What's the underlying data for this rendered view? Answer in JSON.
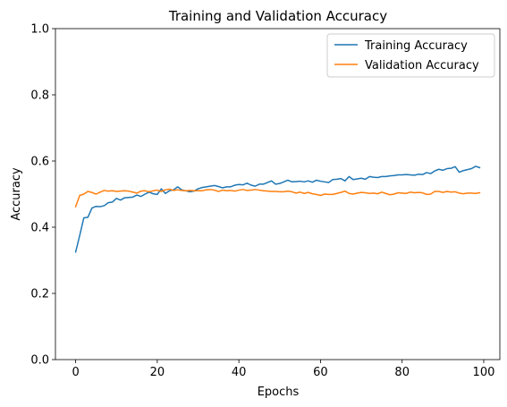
{
  "chart_data": {
    "type": "line",
    "title": "Training and Validation Accuracy",
    "xlabel": "Epochs",
    "ylabel": "Accuracy",
    "xlim": [
      -4.95,
      103.95
    ],
    "ylim": [
      0.0,
      1.0
    ],
    "xticks": [
      0,
      20,
      40,
      60,
      80,
      100
    ],
    "yticks": [
      0.0,
      0.2,
      0.4,
      0.6,
      0.8,
      1.0
    ],
    "xtick_labels": [
      "0",
      "20",
      "40",
      "60",
      "80",
      "100"
    ],
    "ytick_labels": [
      "0.0",
      "0.2",
      "0.4",
      "0.6",
      "0.8",
      "1.0"
    ],
    "grid": false,
    "legend_position": "top-right",
    "series": [
      {
        "name": "Training Accuracy",
        "color": "#1f77b4",
        "x": [
          0,
          1,
          2,
          3,
          4,
          5,
          6,
          7,
          8,
          9,
          10,
          11,
          12,
          13,
          14,
          15,
          16,
          17,
          18,
          19,
          20,
          21,
          22,
          23,
          24,
          25,
          26,
          27,
          28,
          29,
          30,
          31,
          32,
          33,
          34,
          35,
          36,
          37,
          38,
          39,
          40,
          41,
          42,
          43,
          44,
          45,
          46,
          47,
          48,
          49,
          50,
          51,
          52,
          53,
          54,
          55,
          56,
          57,
          58,
          59,
          60,
          61,
          62,
          63,
          64,
          65,
          66,
          67,
          68,
          69,
          70,
          71,
          72,
          73,
          74,
          75,
          76,
          77,
          78,
          79,
          80,
          81,
          82,
          83,
          84,
          85,
          86,
          87,
          88,
          89,
          90,
          91,
          92,
          93,
          94,
          95,
          96,
          97,
          98,
          99
        ],
        "y": [
          0.325,
          0.375,
          0.428,
          0.43,
          0.458,
          0.463,
          0.462,
          0.465,
          0.474,
          0.476,
          0.487,
          0.482,
          0.489,
          0.49,
          0.491,
          0.497,
          0.493,
          0.5,
          0.506,
          0.501,
          0.499,
          0.516,
          0.502,
          0.51,
          0.513,
          0.522,
          0.513,
          0.51,
          0.507,
          0.509,
          0.516,
          0.52,
          0.522,
          0.524,
          0.526,
          0.523,
          0.519,
          0.522,
          0.522,
          0.527,
          0.529,
          0.528,
          0.533,
          0.527,
          0.524,
          0.53,
          0.53,
          0.535,
          0.54,
          0.53,
          0.532,
          0.537,
          0.542,
          0.537,
          0.538,
          0.539,
          0.537,
          0.54,
          0.536,
          0.542,
          0.539,
          0.537,
          0.535,
          0.544,
          0.545,
          0.547,
          0.54,
          0.553,
          0.544,
          0.546,
          0.548,
          0.545,
          0.553,
          0.551,
          0.55,
          0.553,
          0.553,
          0.555,
          0.556,
          0.558,
          0.558,
          0.559,
          0.558,
          0.557,
          0.56,
          0.559,
          0.565,
          0.562,
          0.57,
          0.575,
          0.572,
          0.577,
          0.578,
          0.583,
          0.566,
          0.571,
          0.574,
          0.577,
          0.584,
          0.58
        ]
      },
      {
        "name": "Validation Accuracy",
        "color": "#ff7f0e",
        "x": [
          0,
          1,
          2,
          3,
          4,
          5,
          6,
          7,
          8,
          9,
          10,
          11,
          12,
          13,
          14,
          15,
          16,
          17,
          18,
          19,
          20,
          21,
          22,
          23,
          24,
          25,
          26,
          27,
          28,
          29,
          30,
          31,
          32,
          33,
          34,
          35,
          36,
          37,
          38,
          39,
          40,
          41,
          42,
          43,
          44,
          45,
          46,
          47,
          48,
          49,
          50,
          51,
          52,
          53,
          54,
          55,
          56,
          57,
          58,
          59,
          60,
          61,
          62,
          63,
          64,
          65,
          66,
          67,
          68,
          69,
          70,
          71,
          72,
          73,
          74,
          75,
          76,
          77,
          78,
          79,
          80,
          81,
          82,
          83,
          84,
          85,
          86,
          87,
          88,
          89,
          90,
          91,
          92,
          93,
          94,
          95,
          96,
          97,
          98,
          99
        ],
        "y": [
          0.462,
          0.496,
          0.5,
          0.508,
          0.505,
          0.5,
          0.506,
          0.511,
          0.509,
          0.51,
          0.508,
          0.509,
          0.51,
          0.509,
          0.506,
          0.503,
          0.509,
          0.51,
          0.507,
          0.51,
          0.512,
          0.508,
          0.513,
          0.515,
          0.511,
          0.513,
          0.511,
          0.51,
          0.511,
          0.51,
          0.51,
          0.51,
          0.513,
          0.514,
          0.512,
          0.508,
          0.512,
          0.51,
          0.511,
          0.509,
          0.512,
          0.514,
          0.511,
          0.512,
          0.514,
          0.512,
          0.51,
          0.509,
          0.508,
          0.508,
          0.507,
          0.507,
          0.509,
          0.507,
          0.503,
          0.506,
          0.502,
          0.505,
          0.501,
          0.499,
          0.496,
          0.5,
          0.499,
          0.499,
          0.502,
          0.505,
          0.509,
          0.502,
          0.5,
          0.503,
          0.505,
          0.504,
          0.502,
          0.503,
          0.501,
          0.506,
          0.502,
          0.498,
          0.5,
          0.504,
          0.503,
          0.502,
          0.506,
          0.504,
          0.505,
          0.504,
          0.499,
          0.5,
          0.508,
          0.508,
          0.505,
          0.508,
          0.506,
          0.507,
          0.503,
          0.501,
          0.503,
          0.503,
          0.502,
          0.504
        ]
      }
    ]
  }
}
